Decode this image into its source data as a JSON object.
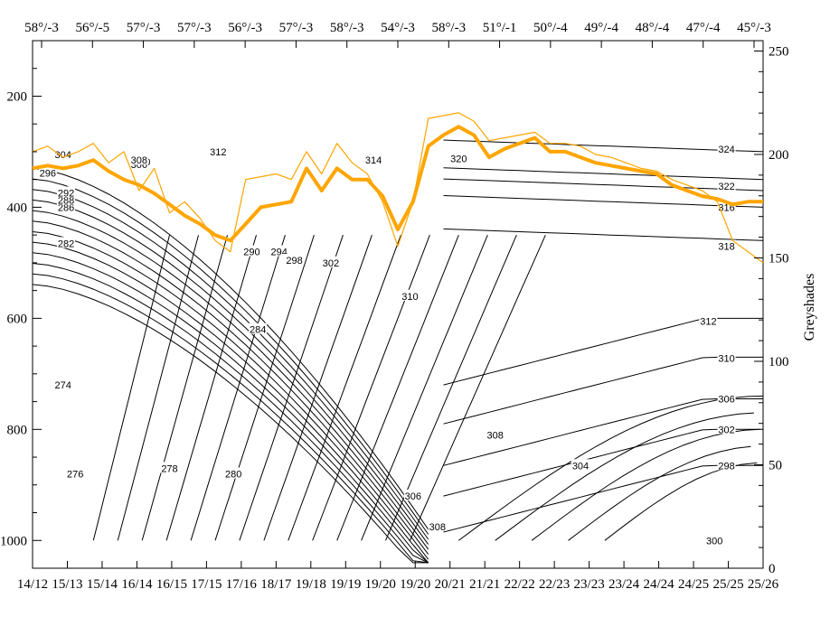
{
  "chart_data": {
    "type": "line",
    "title": "",
    "top_axis": {
      "tick_labels": [
        "58°/-3",
        "56°/-5",
        "57°/-3",
        "57°/-3",
        "56°/-3",
        "57°/-3",
        "58°/-3",
        "54°/-3",
        "58°/-3",
        "51°/-1",
        "50°/-4",
        "49°/-4",
        "48°/-4",
        "47°/-4",
        "45°/-3"
      ]
    },
    "x_axis": {
      "range": [
        0,
        24
      ],
      "tick_labels": [
        "14/12",
        "15/13",
        "15/14",
        "16/14",
        "16/15",
        "17/15",
        "17/16",
        "18/17",
        "19/18",
        "19/19",
        "19/20",
        "19/20",
        "20/21",
        "21/21",
        "22/22",
        "22/23",
        "23/23",
        "23/24",
        "24/24",
        "24/25",
        "25/25",
        "25/26"
      ]
    },
    "y_left": {
      "label": "",
      "range": [
        1050,
        100
      ],
      "ticks": [
        200,
        400,
        600,
        800,
        1000
      ]
    },
    "y_right": {
      "label": "Greyshades",
      "range": [
        0,
        255
      ],
      "ticks": [
        0,
        50,
        100,
        150,
        200,
        250
      ]
    },
    "contour_labels": [
      {
        "text": "274",
        "x": 1.0,
        "y": 720
      },
      {
        "text": "276",
        "x": 1.4,
        "y": 880
      },
      {
        "text": "278",
        "x": 4.5,
        "y": 870
      },
      {
        "text": "280",
        "x": 6.6,
        "y": 880
      },
      {
        "text": "282",
        "x": 1.1,
        "y": 465
      },
      {
        "text": "284",
        "x": 7.4,
        "y": 620
      },
      {
        "text": "286",
        "x": 1.1,
        "y": 400
      },
      {
        "text": "288",
        "x": 1.1,
        "y": 387
      },
      {
        "text": "290",
        "x": 7.2,
        "y": 480
      },
      {
        "text": "292",
        "x": 1.1,
        "y": 374
      },
      {
        "text": "294",
        "x": 8.1,
        "y": 480
      },
      {
        "text": "296",
        "x": 0.5,
        "y": 338
      },
      {
        "text": "298",
        "x": 8.6,
        "y": 495
      },
      {
        "text": "300",
        "x": 3.6,
        "y": 318
      },
      {
        "text": "302",
        "x": 9.8,
        "y": 500
      },
      {
        "text": "304",
        "x": 1.0,
        "y": 305
      },
      {
        "text": "306",
        "x": 3.5,
        "y": 323
      },
      {
        "text": "308",
        "x": 3.5,
        "y": 315
      },
      {
        "text": "310",
        "x": 12.4,
        "y": 560
      },
      {
        "text": "312",
        "x": 6.1,
        "y": 300
      },
      {
        "text": "314",
        "x": 11.2,
        "y": 315
      },
      {
        "text": "316",
        "x": 22.8,
        "y": 400
      },
      {
        "text": "318",
        "x": 22.8,
        "y": 470
      },
      {
        "text": "320",
        "x": 14.0,
        "y": 312
      },
      {
        "text": "322",
        "x": 22.8,
        "y": 362
      },
      {
        "text": "324",
        "x": 22.8,
        "y": 295
      },
      {
        "text": "312",
        "x": 22.2,
        "y": 605
      },
      {
        "text": "310",
        "x": 22.8,
        "y": 672
      },
      {
        "text": "308",
        "x": 15.2,
        "y": 810
      },
      {
        "text": "306",
        "x": 12.5,
        "y": 920
      },
      {
        "text": "308",
        "x": 13.3,
        "y": 975
      },
      {
        "text": "306",
        "x": 22.8,
        "y": 745
      },
      {
        "text": "304",
        "x": 18.0,
        "y": 865
      },
      {
        "text": "302",
        "x": 22.8,
        "y": 800
      },
      {
        "text": "298",
        "x": 22.8,
        "y": 865
      },
      {
        "text": "300",
        "x": 22.4,
        "y": 1000
      }
    ],
    "series": [
      {
        "x": [
          0,
          0.5,
          1.0,
          1.5,
          2.0,
          2.5,
          3.0,
          3.5,
          4.0,
          4.5,
          5.0,
          5.5,
          6.0,
          6.5,
          7.0,
          7.5,
          8.0,
          8.5,
          9.0,
          9.5,
          10.0,
          10.5,
          11.0,
          11.5,
          12.0,
          12.5,
          13.0,
          13.5,
          14.0,
          14.5,
          15.0,
          15.5,
          16.0,
          16.5,
          17.0,
          17.5,
          18.0,
          18.5,
          19.0,
          19.5,
          20.0,
          20.5,
          21.0,
          21.5,
          22.0,
          22.5,
          23.0,
          23.5,
          24.0
        ],
        "values": [
          330,
          325,
          330,
          325,
          315,
          335,
          350,
          360,
          375,
          395,
          415,
          430,
          450,
          460,
          430,
          400,
          395,
          390,
          330,
          370,
          330,
          350,
          350,
          380,
          440,
          390,
          290,
          270,
          255,
          270,
          310,
          295,
          285,
          275,
          300,
          300,
          310,
          320,
          325,
          330,
          335,
          340,
          360,
          370,
          380,
          385,
          395,
          390,
          390
        ]
      },
      {
        "x": [
          0,
          0.5,
          1.0,
          1.5,
          2.0,
          2.5,
          3.0,
          3.5,
          4.0,
          4.5,
          5.0,
          5.5,
          6.0,
          6.5,
          7.0,
          7.5,
          8.0,
          8.5,
          9.0,
          9.5,
          10.0,
          10.5,
          11.0,
          11.5,
          12.0,
          12.5,
          13.0,
          13.5,
          14.0,
          14.5,
          15.0,
          15.5,
          16.0,
          16.5,
          17.0,
          17.5,
          18.0,
          18.5,
          19.0,
          19.5,
          20.0,
          20.5,
          21.0,
          21.5,
          22.0,
          22.5,
          23.0,
          23.5,
          24.0
        ],
        "values": [
          300,
          290,
          310,
          300,
          285,
          320,
          300,
          370,
          330,
          410,
          390,
          420,
          460,
          480,
          350,
          345,
          340,
          350,
          300,
          340,
          285,
          320,
          340,
          390,
          470,
          390,
          240,
          235,
          230,
          245,
          280,
          275,
          270,
          265,
          285,
          285,
          290,
          305,
          310,
          320,
          330,
          335,
          350,
          360,
          370,
          390,
          460,
          480,
          500
        ]
      }
    ],
    "colors": {
      "main_line": "#ffa500",
      "contours": "#000000"
    }
  }
}
